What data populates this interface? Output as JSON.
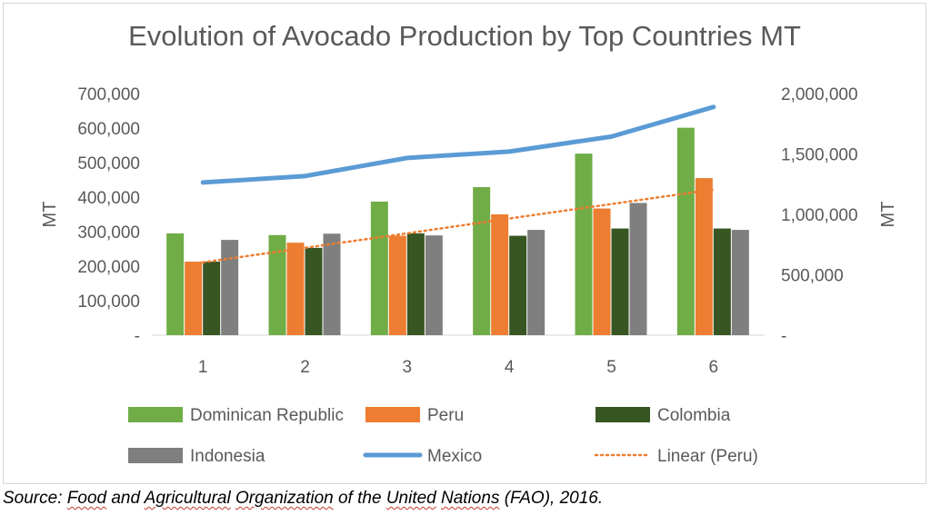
{
  "chart_data": {
    "type": "bar",
    "title": "Evolution of Avocado Production by Top Countries  MT",
    "xlabel": "",
    "ylabel": "MT",
    "y2label": "MT",
    "categories": [
      "1",
      "2",
      "3",
      "4",
      "5",
      "6"
    ],
    "ylim": [
      0,
      700000
    ],
    "y2lim": [
      0,
      2000000
    ],
    "y_ticks": [
      "-",
      "100,000",
      "200,000",
      "300,000",
      "400,000",
      "500,000",
      "600,000",
      "700,000"
    ],
    "y2_ticks": [
      "-",
      "500,000",
      "1,000,000",
      "1,500,000",
      "2,000,000"
    ],
    "grid": false,
    "legend_position": "bottom",
    "series": [
      {
        "name": "Dominican Republic",
        "type": "bar",
        "axis": "left",
        "color": "#70ad47",
        "values": [
          295000,
          290000,
          387000,
          429000,
          526000,
          601000
        ]
      },
      {
        "name": "Peru",
        "type": "bar",
        "axis": "left",
        "color": "#ed7d31",
        "values": [
          213000,
          268000,
          288000,
          350000,
          367000,
          455000
        ]
      },
      {
        "name": "Colombia",
        "type": "bar",
        "axis": "left",
        "color": "#375623",
        "values": [
          213000,
          253000,
          295000,
          288000,
          309000,
          309000
        ]
      },
      {
        "name": "Indonesia",
        "type": "bar",
        "axis": "left",
        "color": "#7f7f7f",
        "values": [
          276000,
          294000,
          289000,
          305000,
          383000,
          305000
        ]
      },
      {
        "name": "Mexico",
        "type": "line",
        "axis": "right",
        "color": "#5b9bd5",
        "values": [
          1264000,
          1317000,
          1467000,
          1520000,
          1644000,
          1889000
        ]
      },
      {
        "name": "Linear (Peru)",
        "type": "trendline",
        "axis": "left",
        "color": "#ed7d31",
        "style": "dotted",
        "values": [
          211000,
          253000,
          295000,
          338000,
          380000,
          422000
        ]
      }
    ]
  },
  "source": {
    "prefix": "Source: ",
    "words": [
      {
        "t": "Food",
        "u": true
      },
      {
        "t": " and ",
        "u": false
      },
      {
        "t": "Agricultural",
        "u": true
      },
      {
        "t": " ",
        "u": false
      },
      {
        "t": "Organization",
        "u": true
      },
      {
        "t": " of the ",
        "u": false
      },
      {
        "t": "United",
        "u": true
      },
      {
        "t": " ",
        "u": false
      },
      {
        "t": "Nations",
        "u": true
      },
      {
        "t": " (FAO), 2016.",
        "u": false
      }
    ]
  }
}
